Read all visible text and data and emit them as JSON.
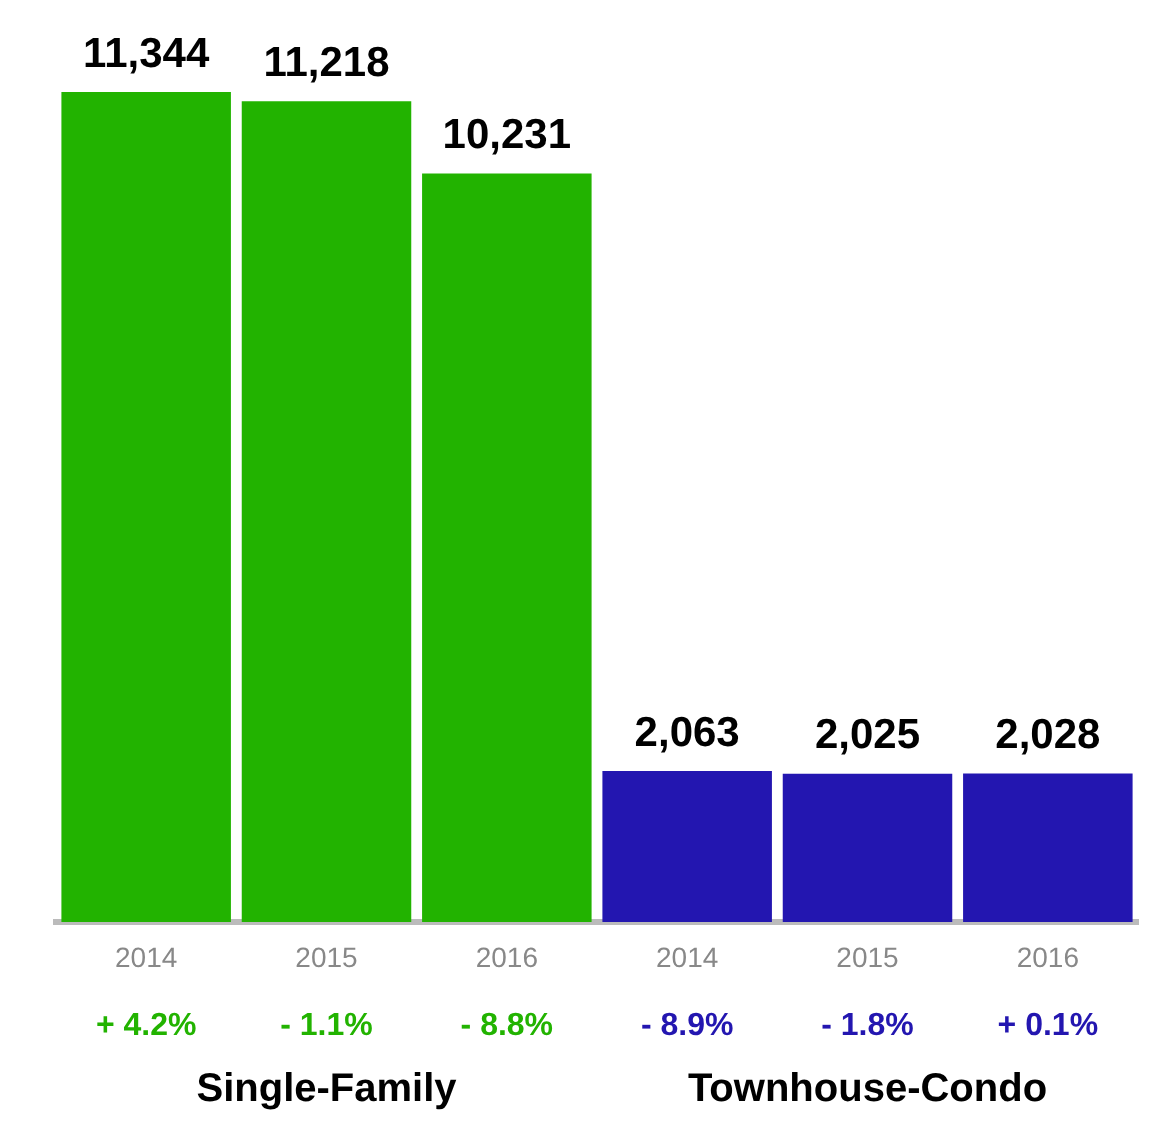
{
  "chart_data": {
    "type": "bar",
    "categories": [
      "2014",
      "2015",
      "2016",
      "2014",
      "2015",
      "2016"
    ],
    "values": [
      11344,
      11218,
      10231,
      2063,
      2025,
      2028
    ],
    "colors": [
      "#22b300",
      "#22b300",
      "#22b300",
      "#2316b0",
      "#2316b0",
      "#2316b0"
    ],
    "value_labels": [
      "11,344",
      "11,218",
      "10,231",
      "2,063",
      "2,025",
      "2,028"
    ],
    "grid": false,
    "legend": false,
    "annotations": [
      "+ 4.2%",
      "- 1.1%",
      "- 8.8%",
      "- 8.9%",
      "- 1.8%",
      "+ 0.1%",
      "Single-Family",
      "Townhouse-Condo"
    ]
  }
}
